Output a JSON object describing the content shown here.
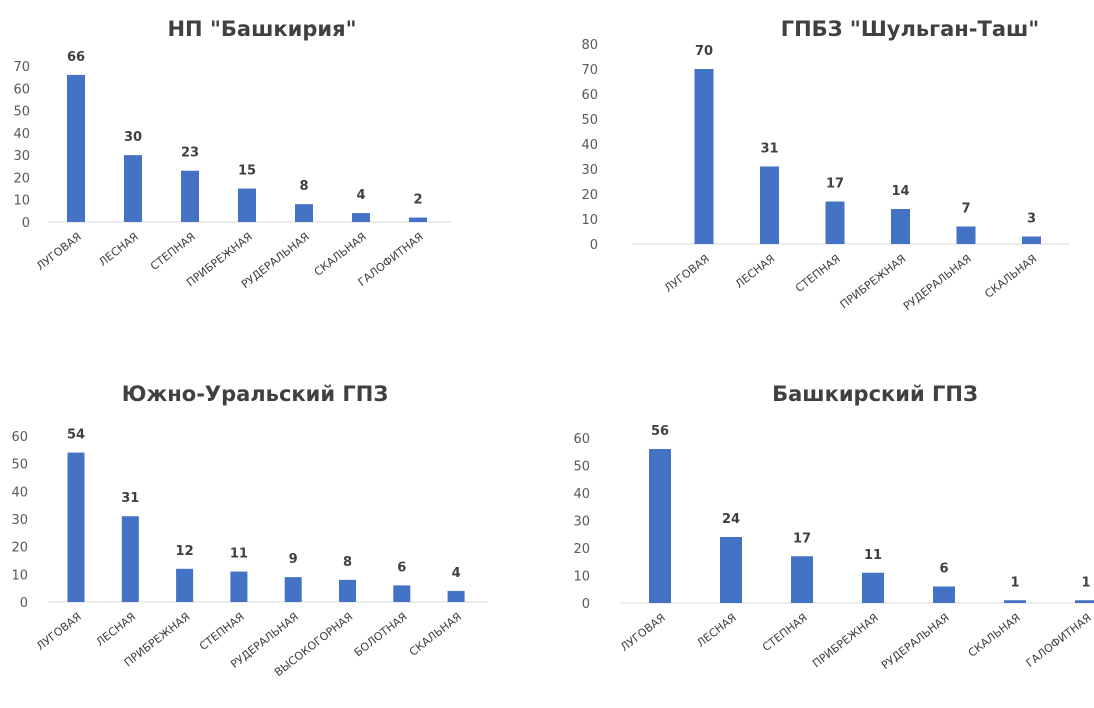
{
  "colors": {
    "bar": "#4472C4",
    "text": "#404040",
    "axis": "#d9d9d9"
  },
  "chart_data": [
    {
      "type": "bar",
      "title": "НП \"Башкирия\"",
      "categories": [
        "ЛУГОВАЯ",
        "ЛЕСНАЯ",
        "СТЕПНАЯ",
        "ПРИБРЕЖНАЯ",
        "РУДЕРАЛЬНАЯ",
        "СКАЛЬНАЯ",
        "ГАЛОФИТНАЯ"
      ],
      "values": [
        66,
        30,
        23,
        15,
        8,
        4,
        2
      ],
      "ylim": [
        0,
        70
      ],
      "yticks": [
        0,
        10,
        20,
        30,
        40,
        50,
        60,
        70
      ],
      "data_labels": true,
      "grid": false
    },
    {
      "type": "bar",
      "title": "ГПБЗ \"Шульган-Таш\"",
      "categories": [
        "ЛУГОВАЯ",
        "ЛЕСНАЯ",
        "СТЕПНАЯ",
        "ПРИБРЕЖНАЯ",
        "РУДЕРАЛЬНАЯ",
        "СКАЛЬНАЯ"
      ],
      "values": [
        70,
        31,
        17,
        14,
        7,
        3
      ],
      "ylim": [
        0,
        80
      ],
      "yticks": [
        0,
        10,
        20,
        30,
        40,
        50,
        60,
        70,
        80
      ],
      "data_labels": true,
      "grid": false
    },
    {
      "type": "bar",
      "title": "Южно-Уральский  ГПЗ",
      "categories": [
        "ЛУГОВАЯ",
        "ЛЕСНАЯ",
        "ПРИБРЕЖНАЯ",
        "СТЕПНАЯ",
        "РУДЕРАЛЬНАЯ",
        "ВЫСОКОГОРНАЯ",
        "БОЛОТНАЯ",
        "СКАЛЬНАЯ"
      ],
      "values": [
        54,
        31,
        12,
        11,
        9,
        8,
        6,
        4
      ],
      "ylim": [
        0,
        60
      ],
      "yticks": [
        0,
        10,
        20,
        30,
        40,
        50,
        60
      ],
      "data_labels": true,
      "grid": false
    },
    {
      "type": "bar",
      "title": "Башкирский  ГПЗ",
      "categories": [
        "ЛУГОВАЯ",
        "ЛЕСНАЯ",
        "СТЕПНАЯ",
        "ПРИБРЕЖНАЯ",
        "РУДЕРАЛЬНАЯ",
        "СКАЛЬНАЯ",
        "ГАЛОФИТНАЯ"
      ],
      "values": [
        56,
        24,
        17,
        11,
        6,
        1,
        1
      ],
      "ylim": [
        0,
        60
      ],
      "yticks": [
        0,
        10,
        20,
        30,
        40,
        50,
        60
      ],
      "data_labels": true,
      "grid": false
    }
  ]
}
